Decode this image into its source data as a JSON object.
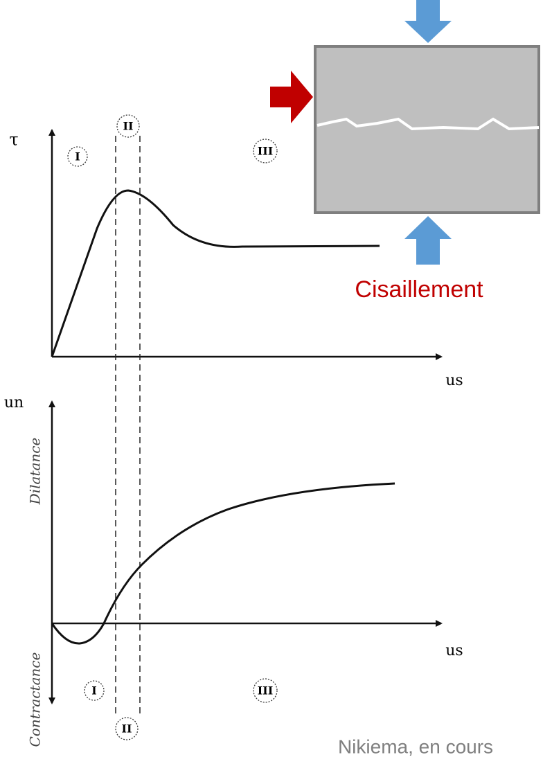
{
  "top_plot": {
    "y_label": "τ",
    "x_label": "us",
    "zones": [
      "I",
      "II",
      "III"
    ]
  },
  "bottom_plot": {
    "y_label": "un",
    "x_label": "us",
    "upper_label": "Dilatance",
    "lower_label": "Contractance",
    "zones": [
      "I",
      "II",
      "III"
    ]
  },
  "caption": "Cisaillement",
  "credit": "Nikiema, en cours"
}
